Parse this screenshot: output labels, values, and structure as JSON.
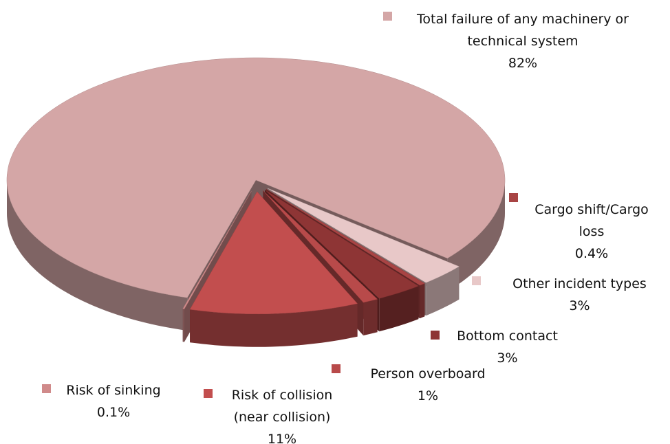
{
  "chart_data": {
    "type": "pie",
    "categories": [
      "Total failure of any machinery or technical system",
      "Other incident types",
      "Cargo shift/Cargo loss",
      "Bottom contact",
      "Person overboard",
      "Risk of collision (near collision)",
      "Risk of sinking"
    ],
    "values": [
      82,
      3,
      0.4,
      3,
      1,
      11,
      0.1
    ],
    "value_labels": [
      "82%",
      "3%",
      "0.4%",
      "3%",
      "1%",
      "11%",
      "0.1%"
    ],
    "colors": [
      "#d4a6a6",
      "#e8c8c8",
      "#a84444",
      "#8e3535",
      "#b84a4a",
      "#c24e4e",
      "#d08a8a"
    ]
  }
}
